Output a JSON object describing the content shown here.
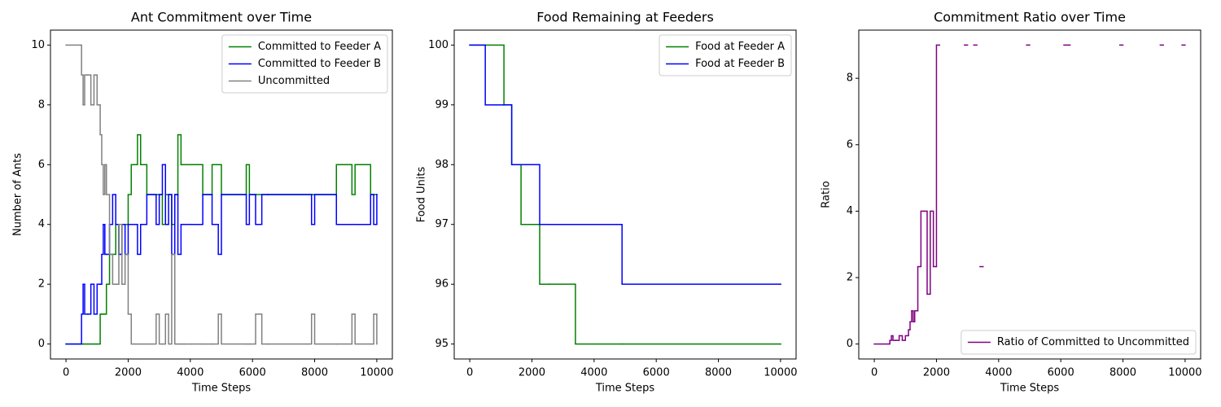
{
  "chart_data": [
    {
      "type": "step",
      "title": "Ant Commitment over Time",
      "x_label": "Time Steps",
      "y_label": "Number of Ants",
      "x": [
        0,
        500,
        550,
        600,
        700,
        800,
        900,
        1000,
        1100,
        1150,
        1200,
        1250,
        1300,
        1400,
        1500,
        1600,
        1700,
        1800,
        1900,
        2000,
        2100,
        2200,
        2300,
        2400,
        2600,
        2900,
        3000,
        3100,
        3200,
        3300,
        3400,
        3500,
        3600,
        3700,
        3800,
        4000,
        4400,
        4700,
        4900,
        5000,
        5800,
        5900,
        6100,
        6300,
        6500,
        7900,
        8000,
        8700,
        9200,
        9300,
        9800,
        9900,
        10000
      ],
      "series": [
        {
          "name": "Committed to Feeder A",
          "color": "#008000",
          "values": [
            0,
            0,
            0,
            0,
            0,
            0,
            0,
            0,
            1,
            1,
            1,
            1,
            2,
            3,
            3,
            4,
            3,
            4,
            4,
            5,
            6,
            6,
            7,
            6,
            5,
            5,
            5,
            4,
            5,
            5,
            4,
            5,
            7,
            6,
            6,
            6,
            5,
            6,
            6,
            5,
            6,
            5,
            5,
            5,
            5,
            5,
            5,
            6,
            5,
            6,
            5,
            5,
            5
          ]
        },
        {
          "name": "Committed to Feeder B",
          "color": "#0000ff",
          "values": [
            0,
            1,
            2,
            1,
            1,
            2,
            1,
            2,
            2,
            3,
            4,
            3,
            3,
            4,
            5,
            4,
            3,
            4,
            3,
            4,
            4,
            4,
            3,
            4,
            5,
            4,
            5,
            6,
            4,
            5,
            3,
            5,
            3,
            4,
            4,
            4,
            5,
            4,
            3,
            5,
            4,
            5,
            4,
            5,
            5,
            4,
            5,
            4,
            4,
            4,
            5,
            4,
            5
          ]
        },
        {
          "name": "Uncommitted",
          "color": "#808080",
          "values": [
            10,
            9,
            8,
            9,
            9,
            8,
            9,
            8,
            7,
            6,
            5,
            6,
            5,
            3,
            2,
            2,
            4,
            2,
            3,
            1,
            0,
            0,
            0,
            0,
            0,
            1,
            0,
            0,
            1,
            0,
            3,
            0,
            0,
            0,
            0,
            0,
            0,
            0,
            1,
            0,
            0,
            0,
            1,
            0,
            0,
            1,
            0,
            0,
            1,
            0,
            0,
            1,
            0
          ]
        }
      ],
      "xlim": [
        -500,
        10500
      ],
      "xticks": [
        0,
        2000,
        4000,
        6000,
        8000,
        10000
      ],
      "ylim": [
        -0.5,
        10.5
      ],
      "yticks": [
        0,
        2,
        4,
        6,
        8,
        10
      ],
      "legend": "upper right"
    },
    {
      "type": "step",
      "title": "Food Remaining at Feeders",
      "x_label": "Time Steps",
      "y_label": "Food Units",
      "x": [
        0,
        500,
        1100,
        1350,
        1650,
        2250,
        2550,
        3400,
        4900,
        10000
      ],
      "series": [
        {
          "name": "Food at Feeder A",
          "color": "#008000",
          "values": [
            100,
            100,
            99,
            98,
            97,
            96,
            96,
            95,
            95,
            95
          ]
        },
        {
          "name": "Food at Feeder B",
          "color": "#0000ff",
          "values": [
            100,
            99,
            99,
            98,
            98,
            97,
            97,
            97,
            96,
            96
          ]
        }
      ],
      "xlim": [
        -500,
        10500
      ],
      "xticks": [
        0,
        2000,
        4000,
        6000,
        8000,
        10000
      ],
      "ylim": [
        94.75,
        100.25
      ],
      "yticks": [
        95,
        96,
        97,
        98,
        99,
        100
      ],
      "legend": "upper right"
    },
    {
      "type": "step",
      "title": "Commitment Ratio over Time",
      "x_label": "Time Steps",
      "y_label": "Ratio",
      "x": [
        0,
        500,
        550,
        600,
        700,
        800,
        900,
        1000,
        1100,
        1150,
        1200,
        1250,
        1300,
        1400,
        1500,
        1600,
        1700,
        1800,
        1900,
        2000,
        2100,
        2200,
        2300,
        2400,
        2600,
        2900,
        3000,
        3100,
        3200,
        3300,
        3400,
        3500,
        3600,
        3700,
        3800,
        4000,
        4400,
        4700,
        4900,
        5000,
        5800,
        5900,
        6100,
        6300,
        6500,
        7900,
        8000,
        8700,
        9200,
        9300,
        9800,
        9900,
        10000
      ],
      "series": [
        {
          "name": "Ratio of Committed to Uncommitted",
          "color": "#800080",
          "values": [
            0,
            0.11,
            0.25,
            0.11,
            0.11,
            0.25,
            0.11,
            0.25,
            0.43,
            0.67,
            1,
            0.67,
            1,
            2.33,
            4,
            4,
            1.5,
            4,
            2.33,
            9,
            null,
            null,
            null,
            null,
            null,
            9,
            null,
            null,
            9,
            null,
            2.33,
            null,
            null,
            null,
            null,
            null,
            null,
            null,
            9,
            null,
            null,
            null,
            9,
            null,
            null,
            9,
            null,
            null,
            9,
            null,
            null,
            9,
            null
          ]
        }
      ],
      "xlim": [
        -500,
        10500
      ],
      "xticks": [
        0,
        2000,
        4000,
        6000,
        8000,
        10000
      ],
      "ylim": [
        -0.45,
        9.45
      ],
      "yticks": [
        0,
        2,
        4,
        6,
        8
      ],
      "legend": "lower right"
    }
  ]
}
